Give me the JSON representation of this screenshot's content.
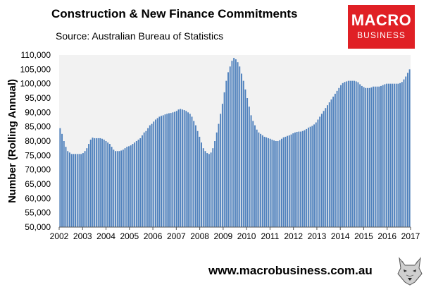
{
  "chart_data": {
    "type": "bar",
    "title": "Construction & New Finance Commitments",
    "subtitle": "Source: Australian  Bureau of Statistics",
    "ylabel": "Number (Rolling Annual)",
    "xlabel": "",
    "ylim": [
      50000,
      110000
    ],
    "yticks": [
      "50,000",
      "55,000",
      "60,000",
      "65,000",
      "70,000",
      "75,000",
      "80,000",
      "85,000",
      "90,000",
      "95,000",
      "100,000",
      "105,000",
      "110,000"
    ],
    "xticks": [
      "2002",
      "2003",
      "2004",
      "2005",
      "2006",
      "2007",
      "2008",
      "2009",
      "2010",
      "2011",
      "2012",
      "2013",
      "2014",
      "2015",
      "2016",
      "2017"
    ],
    "x_start": "2002-01",
    "x_end": "2017-01",
    "bar_color": "#4f81bd",
    "plot_background": "#f2f2f2",
    "values": [
      84500,
      82500,
      80000,
      78000,
      76500,
      76000,
      75500,
      75500,
      75500,
      75500,
      75500,
      75500,
      75800,
      76500,
      77500,
      79000,
      80500,
      81200,
      81000,
      81000,
      81000,
      81000,
      80800,
      80500,
      80000,
      79500,
      79000,
      78000,
      77000,
      76500,
      76500,
      76500,
      76700,
      77000,
      77500,
      78000,
      78200,
      78500,
      79000,
      79500,
      80000,
      80500,
      81000,
      82000,
      83000,
      83500,
      84500,
      85500,
      86000,
      86800,
      87500,
      88000,
      88500,
      88800,
      89000,
      89300,
      89500,
      89700,
      89800,
      90000,
      90200,
      90500,
      91000,
      91200,
      91000,
      90800,
      90500,
      90000,
      89500,
      88500,
      87000,
      85500,
      83500,
      81500,
      79500,
      77500,
      76500,
      75800,
      75500,
      76000,
      77500,
      80000,
      83000,
      86000,
      89500,
      93000,
      97000,
      101000,
      104000,
      106000,
      108000,
      109000,
      108500,
      107500,
      106000,
      103500,
      101000,
      98000,
      95000,
      92000,
      89000,
      87000,
      85500,
      84000,
      83000,
      82500,
      82000,
      81500,
      81300,
      81000,
      80800,
      80500,
      80200,
      80000,
      80000,
      80300,
      80800,
      81300,
      81500,
      81800,
      82000,
      82300,
      82700,
      83000,
      83200,
      83300,
      83300,
      83500,
      83800,
      84200,
      84700,
      85000,
      85300,
      85800,
      86500,
      87500,
      88500,
      89500,
      90500,
      91500,
      92500,
      93500,
      94500,
      95500,
      96500,
      97500,
      98500,
      99500,
      100200,
      100600,
      100800,
      101000,
      101000,
      101000,
      101000,
      100800,
      100500,
      99800,
      99200,
      98800,
      98500,
      98500,
      98500,
      98700,
      99000,
      99000,
      99000,
      99000,
      99200,
      99500,
      99800,
      100000,
      100000,
      100000,
      100000,
      100000,
      100000,
      100000,
      100200,
      100600,
      101500,
      102500,
      103800,
      105000
    ]
  },
  "footer": {
    "url": "www.macrobusiness.com.au"
  },
  "logo": {
    "line1": "MACRO",
    "line2": "BUSINESS",
    "bg": "#e02025"
  },
  "wolf_icon": "wolf-head-icon"
}
